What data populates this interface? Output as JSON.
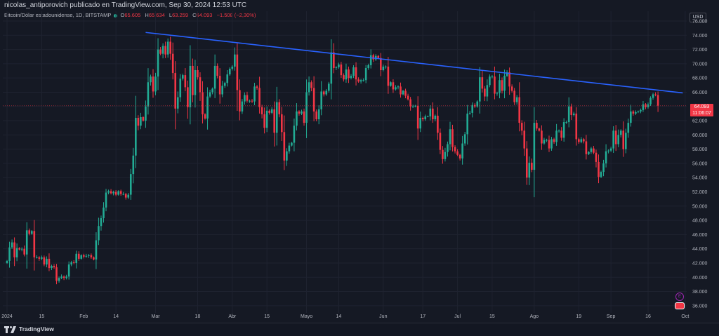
{
  "header": {
    "publisher_text": "nicolas_antiporovich publicado en TradingView.com, Sep 30, 2024 12:53 UTC",
    "currency": "USD"
  },
  "legend": {
    "symbol": "Bitcoin/Dólar estadounidense, 1D, BITSTAMP",
    "open_label": "O",
    "open": "65.605",
    "high_label": "H",
    "high": "65.634",
    "low_label": "L",
    "low": "63.259",
    "close_label": "C",
    "close": "64.093",
    "change": "−1.508 (−2,30%)"
  },
  "last_price": {
    "value": "64.093",
    "countdown": "11:06:07"
  },
  "footer": {
    "brand": "TradingView"
  },
  "colors": {
    "background": "#151924",
    "up": "#22ab94",
    "down": "#f23645",
    "trendline": "#2962ff",
    "grid": "#1f2330",
    "axis_text": "#b2b5be"
  },
  "icons": {
    "tradingview-logo": "TV",
    "event-icon": "E",
    "flag-icon": "US flag"
  },
  "chart_data": {
    "type": "candlestick",
    "title": "",
    "ylim": [
      35000,
      76000
    ],
    "y_ticks": [
      "36.000",
      "38.000",
      "40.000",
      "42.000",
      "44.000",
      "46.000",
      "48.000",
      "50.000",
      "52.000",
      "54.000",
      "56.000",
      "58.000",
      "60.000",
      "62.000",
      "64.000",
      "66.000",
      "68.000",
      "70.000",
      "72.000",
      "74.000",
      "76.000"
    ],
    "x_ticks": [
      "2024",
      "15",
      "Feb",
      "14",
      "Mar",
      "18",
      "Abr",
      "15",
      "Mayo",
      "14",
      "Jun",
      "17",
      "Jul",
      "15",
      "Ago",
      "19",
      "Sep",
      "16",
      "Oct"
    ],
    "x_tick_dates": [
      "2024-01-01",
      "2024-01-15",
      "2024-02-01",
      "2024-02-14",
      "2024-03-01",
      "2024-03-18",
      "2024-04-01",
      "2024-04-15",
      "2024-05-01",
      "2024-05-14",
      "2024-06-01",
      "2024-06-17",
      "2024-07-01",
      "2024-07-15",
      "2024-08-01",
      "2024-08-19",
      "2024-09-01",
      "2024-09-16",
      "2024-10-01"
    ],
    "start_date": "2023-12-31",
    "close_series": [
      42300,
      44200,
      44900,
      42800,
      44100,
      43900,
      44000,
      43200,
      46600,
      46100,
      46500,
      42800,
      42800,
      42600,
      42800,
      41800,
      42600,
      41300,
      41600,
      41400,
      39500,
      39900,
      40100,
      39900,
      40100,
      41800,
      42100,
      42000,
      43300,
      42600,
      43100,
      42900,
      43000,
      43100,
      42800,
      42500,
      45200,
      47200,
      48300,
      49800,
      51900,
      52100,
      51800,
      52000,
      51600,
      52100,
      51700,
      51700,
      51200,
      51600,
      54500,
      57100,
      62400,
      61300,
      62500,
      62000,
      64000,
      67400,
      68200,
      66100,
      68200,
      72000,
      71400,
      72500,
      71300,
      73100,
      71400,
      68700,
      63700,
      65300,
      67900,
      68400,
      66700,
      63900,
      69700,
      65600,
      69100,
      68100,
      66000,
      62900,
      62300,
      65400,
      66000,
      66500,
      69700,
      68300,
      65700,
      66900,
      67300,
      68500,
      69300,
      69600,
      71300,
      66300,
      63300,
      64700,
      65600,
      64800,
      64800,
      64700,
      66800,
      66600,
      63900,
      62900,
      61000,
      63400,
      63100,
      63600,
      60300,
      64600,
      62900,
      60400,
      56400,
      57700,
      58500,
      58900,
      61300,
      63300,
      63000,
      63300,
      61700,
      66000,
      67400,
      66600,
      63300,
      62200,
      63600,
      66100,
      65700,
      66200,
      67200,
      71600,
      69400,
      69500,
      69900,
      68400,
      67800,
      69200,
      68000,
      68300,
      69500,
      67800,
      67500,
      67700,
      67700,
      69400,
      69800,
      71200,
      70600,
      71100,
      70800,
      69100,
      69600,
      69600,
      66900,
      67400,
      66400,
      66700,
      66800,
      65700,
      66200,
      65500,
      65000,
      64000,
      64000,
      64100,
      60900,
      62400,
      62200,
      62600,
      62600,
      63700,
      62200,
      62700,
      60300,
      57900,
      56600,
      57600,
      58700,
      60800,
      58300,
      57700,
      57200,
      56700,
      58800,
      60100,
      63000,
      63100,
      64200,
      64000,
      64700,
      68100,
      66500,
      65400,
      67000,
      68200,
      68200,
      65800,
      65900,
      67700,
      66200,
      68300,
      68800,
      66800,
      66200,
      64600,
      65300,
      61700,
      60600,
      58100,
      54000,
      56100,
      55100,
      61700,
      60900,
      60600,
      58800,
      59300,
      59300,
      58100,
      59400,
      59000,
      60600,
      60600,
      59600,
      61800,
      61800,
      64000,
      62800,
      63000,
      59400,
      59000,
      59400,
      59100,
      57300,
      57600,
      58100,
      57500,
      56200,
      54100,
      54800,
      56000,
      57700,
      57800,
      58100,
      60600,
      58700,
      60000,
      60600,
      58000,
      60300,
      61700,
      63300,
      63000,
      63200,
      63300,
      63500,
      64300,
      63900,
      64300,
      65200,
      65700,
      65600,
      64100
    ],
    "trendline": {
      "start_date": "2024-02-26",
      "start_value": 74400,
      "end_date": "2024-09-30",
      "end_value": 65900
    }
  }
}
